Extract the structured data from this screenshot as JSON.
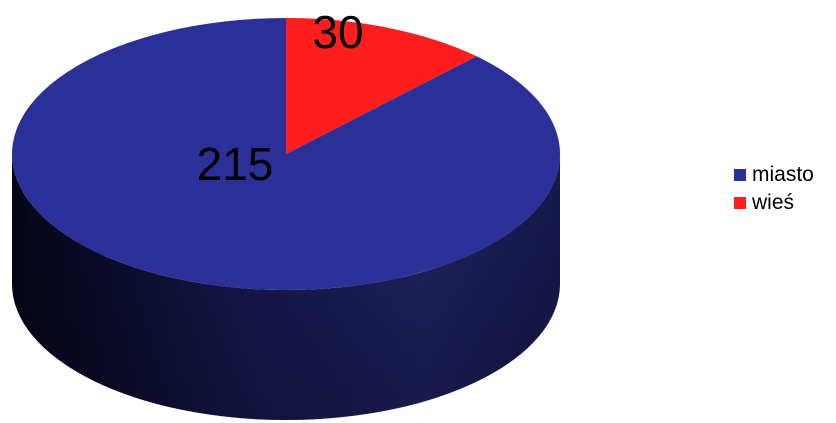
{
  "chart_data": {
    "type": "pie",
    "style": "3d",
    "title": "",
    "categories": [
      "miasto",
      "wieś"
    ],
    "values": [
      215,
      30
    ],
    "data_labels": [
      "215",
      "30"
    ],
    "colors": [
      "#2b2f98",
      "#ff1d1d"
    ],
    "legend": {
      "placement": "right",
      "entries": [
        "miasto",
        "wieś"
      ]
    }
  }
}
